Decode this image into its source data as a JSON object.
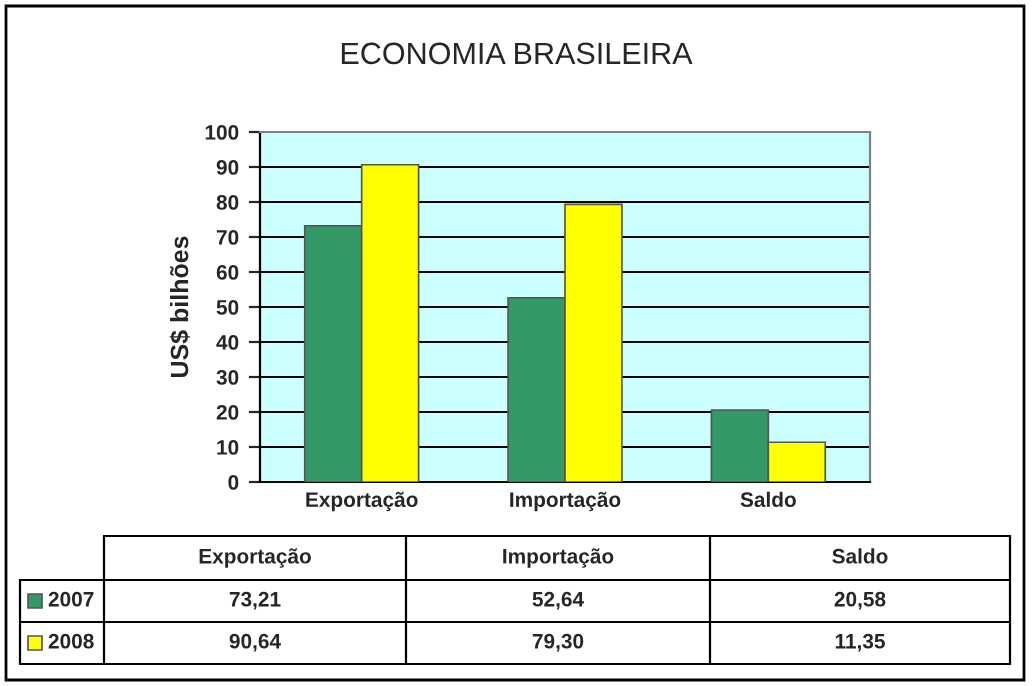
{
  "chart_data": {
    "type": "bar",
    "title": "ECONOMIA BRASILEIRA",
    "ylabel": "US$ bilhões",
    "categories": [
      "Exportação",
      "Importação",
      "Saldo"
    ],
    "series": [
      {
        "name": "2007",
        "color": "#339966",
        "values": [
          73.21,
          52.64,
          20.58
        ],
        "value_labels": [
          "73,21",
          "52,64",
          "20,58"
        ]
      },
      {
        "name": "2008",
        "color": "#ffff00",
        "values": [
          90.64,
          79.3,
          11.35
        ],
        "value_labels": [
          "90,64",
          "79,30",
          "11,35"
        ]
      }
    ],
    "ylim": [
      0,
      100
    ],
    "yticks": [
      0,
      10,
      20,
      30,
      40,
      50,
      60,
      70,
      80,
      90,
      100
    ],
    "grid": "y",
    "legend": "bottom"
  }
}
